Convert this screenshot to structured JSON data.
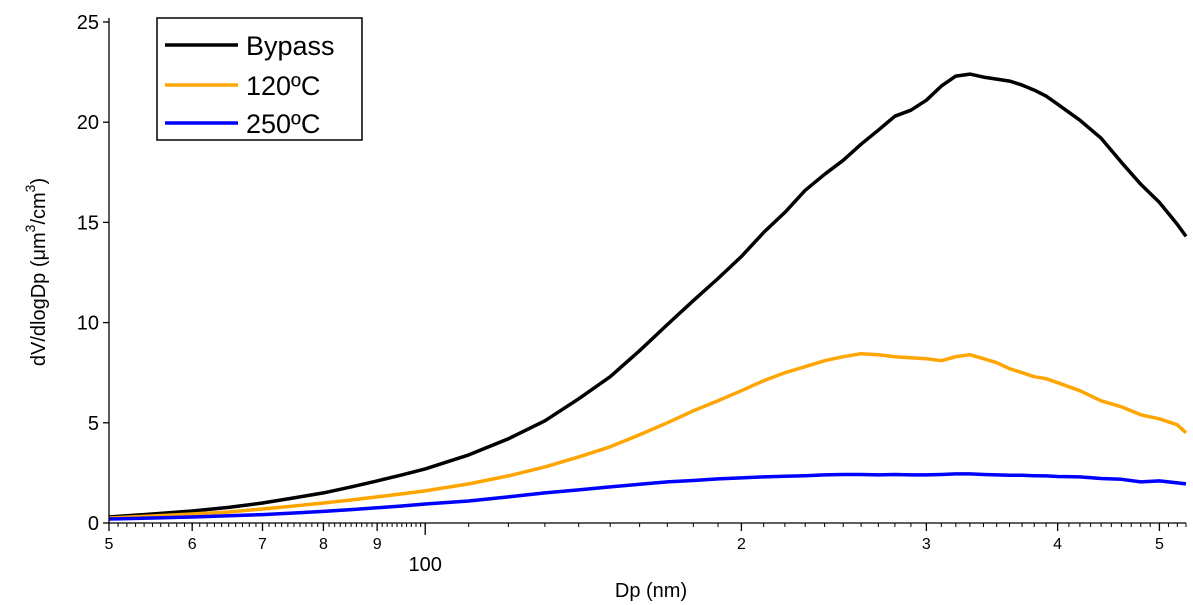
{
  "chart_data": {
    "type": "line",
    "xlabel": "Dp (nm)",
    "ylabel": "dV/dlogDp (μm³/cm³)",
    "ylabel_parts": {
      "a": "dV/dlogDp (μm",
      "sup1": "3",
      "b": "/cm",
      "sup2": "3",
      "c": ")"
    },
    "x_scale": "log",
    "xlim": [
      50,
      530
    ],
    "ylim": [
      0,
      25
    ],
    "y_ticks": [
      0,
      5,
      10,
      15,
      20,
      25
    ],
    "x_major_ticks": [
      {
        "value": 50,
        "label": "5"
      },
      {
        "value": 60,
        "label": "6"
      },
      {
        "value": 70,
        "label": "7"
      },
      {
        "value": 80,
        "label": "8"
      },
      {
        "value": 90,
        "label": "9"
      },
      {
        "value": 100,
        "label": "100"
      },
      {
        "value": 200,
        "label": "2"
      },
      {
        "value": 300,
        "label": "3"
      },
      {
        "value": 400,
        "label": "4"
      },
      {
        "value": 500,
        "label": "5"
      }
    ],
    "grid": false,
    "legend_position": "top-left",
    "x": [
      50,
      55,
      60,
      65,
      70,
      75,
      80,
      85,
      90,
      95,
      100,
      110,
      120,
      130,
      140,
      150,
      160,
      170,
      180,
      190,
      200,
      210,
      220,
      230,
      240,
      250,
      260,
      270,
      280,
      290,
      300,
      310,
      320,
      330,
      340,
      350,
      360,
      370,
      380,
      390,
      400,
      420,
      440,
      460,
      480,
      500,
      520,
      530
    ],
    "series": [
      {
        "name": "Bypass",
        "color": "#000000",
        "values": [
          0.3,
          0.45,
          0.6,
          0.78,
          1.0,
          1.25,
          1.5,
          1.8,
          2.1,
          2.4,
          2.7,
          3.4,
          4.2,
          5.1,
          6.2,
          7.3,
          8.6,
          9.9,
          11.1,
          12.2,
          13.3,
          14.5,
          15.5,
          16.6,
          17.4,
          18.1,
          18.9,
          19.6,
          20.3,
          20.6,
          21.1,
          21.8,
          22.3,
          22.4,
          22.25,
          22.15,
          22.05,
          21.85,
          21.6,
          21.3,
          20.9,
          20.1,
          19.2,
          18.0,
          16.9,
          16.0,
          14.9,
          14.3
        ]
      },
      {
        "name": "120ºC",
        "color": "#FFA500",
        "values": [
          0.25,
          0.35,
          0.45,
          0.55,
          0.7,
          0.85,
          1.0,
          1.15,
          1.3,
          1.45,
          1.6,
          1.95,
          2.35,
          2.8,
          3.3,
          3.8,
          4.4,
          5.0,
          5.6,
          6.1,
          6.6,
          7.1,
          7.5,
          7.8,
          8.1,
          8.3,
          8.45,
          8.4,
          8.3,
          8.25,
          8.2,
          8.1,
          8.3,
          8.4,
          8.2,
          8.0,
          7.7,
          7.5,
          7.3,
          7.2,
          7.0,
          6.6,
          6.1,
          5.8,
          5.4,
          5.2,
          4.9,
          4.5
        ]
      },
      {
        "name": "250ºC",
        "color": "#0000FF",
        "values": [
          0.2,
          0.25,
          0.3,
          0.36,
          0.42,
          0.5,
          0.58,
          0.67,
          0.76,
          0.85,
          0.95,
          1.1,
          1.3,
          1.5,
          1.65,
          1.8,
          1.93,
          2.05,
          2.12,
          2.2,
          2.25,
          2.3,
          2.33,
          2.36,
          2.4,
          2.42,
          2.42,
          2.4,
          2.42,
          2.4,
          2.4,
          2.42,
          2.45,
          2.45,
          2.42,
          2.4,
          2.38,
          2.38,
          2.36,
          2.35,
          2.32,
          2.3,
          2.22,
          2.18,
          2.05,
          2.1,
          2.0,
          1.95
        ]
      }
    ]
  }
}
